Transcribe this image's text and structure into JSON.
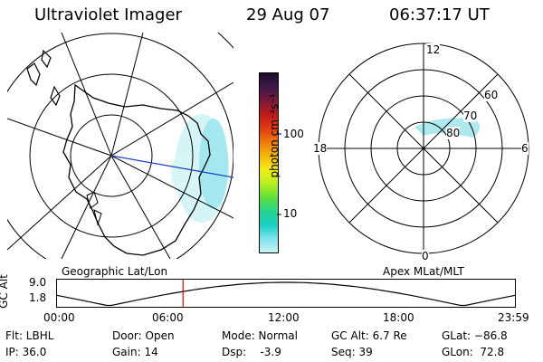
{
  "header": {
    "title": "Ultraviolet Imager",
    "date": "29 Aug 07",
    "time": "06:37:17 UT"
  },
  "colorbar": {
    "unit_label": "photon cm⁻²s⁻¹",
    "ticks": [
      "100",
      "10"
    ],
    "colors_top_to_bottom": [
      "#1a0b2a",
      "#3d1a4a",
      "#7a1a3a",
      "#c01a1a",
      "#e03b10",
      "#f07a0c",
      "#f7b80a",
      "#f2ee15",
      "#b8ee20",
      "#5ee03a",
      "#26d48f",
      "#1ad0c6",
      "#7fe3ea",
      "#c8f2f5"
    ]
  },
  "geographic_map": {
    "label": "Geographic Lat/Lon"
  },
  "polar_map": {
    "label": "Apex  MLat/MLT",
    "mlt_labels": {
      "top": "12",
      "right": "6",
      "bottom": "0",
      "left": "18"
    },
    "mlat_labels": [
      "60",
      "70",
      "80"
    ]
  },
  "timeline": {
    "ylabel": "GC Alt",
    "ymax": "9.0",
    "ymin": "1.8",
    "ticks": [
      "00:00",
      "06:00",
      "12:00",
      "18:00",
      "23:59"
    ],
    "current_time_fraction": 0.276
  },
  "info": {
    "flt": "Flt: LBHL",
    "ip": "IP: 36.0",
    "door": "Door: Open",
    "gain": "Gain: 14",
    "mode": "Mode: Normal",
    "dsp": "Dsp:    -3.9",
    "gc_alt": "GC Alt: 6.7 Re",
    "seq": "Seq: 39",
    "glat": "GLat: −86.8",
    "glon": "GLon:  72.8"
  },
  "colors": {
    "track": "#1a3fbf",
    "marker": "#dd0000",
    "aurora": "#9fe6ee"
  }
}
